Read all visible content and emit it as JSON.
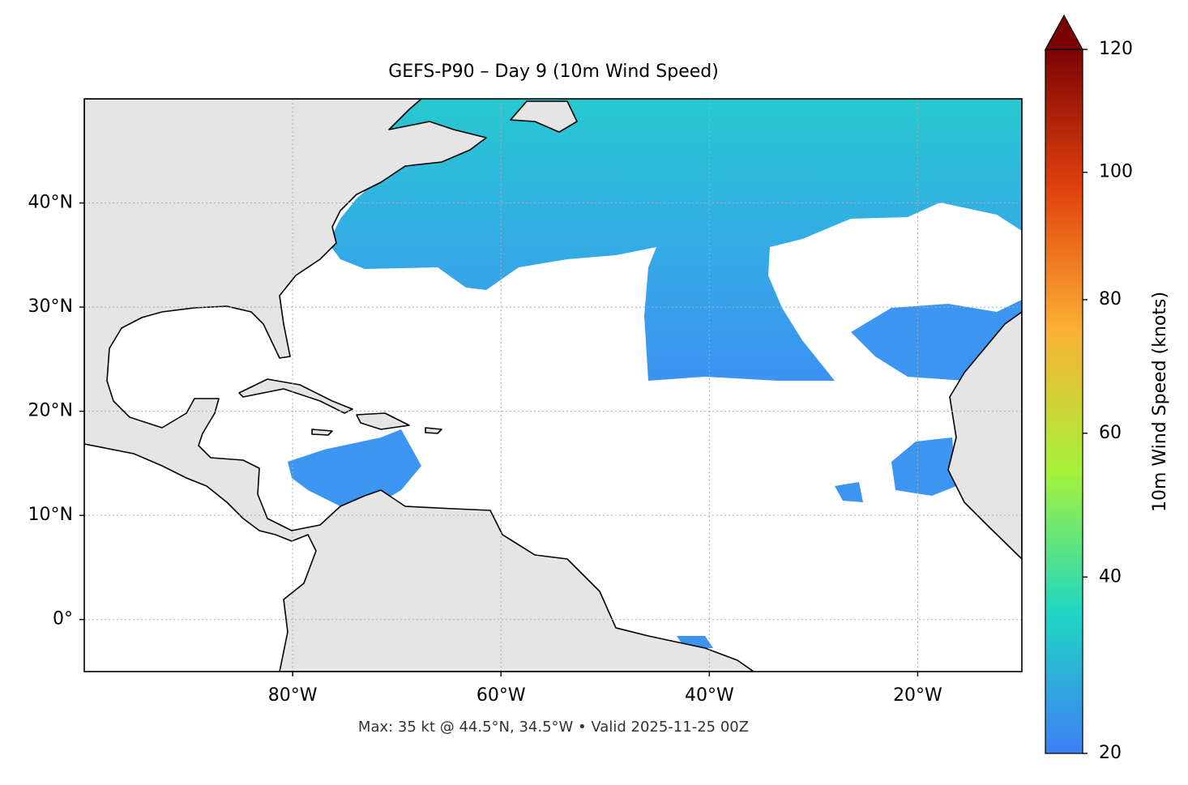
{
  "chart_data": {
    "type": "map",
    "title": "GEFS-P90 – Day 9 (10m Wind Speed)",
    "subtitle": "Max: 35 kt @ 44.5°N, 34.5°W • Valid 2025-11-25 00Z",
    "xlim": [
      -100,
      -10
    ],
    "ylim": [
      -5,
      50
    ],
    "xticks": [
      {
        "value": -80,
        "label": "80°W"
      },
      {
        "value": -60,
        "label": "60°W"
      },
      {
        "value": -40,
        "label": "40°W"
      },
      {
        "value": -20,
        "label": "20°W"
      }
    ],
    "yticks": [
      {
        "value": 0,
        "label": "0°"
      },
      {
        "value": 10,
        "label": "10°N"
      },
      {
        "value": 20,
        "label": "20°N"
      },
      {
        "value": 30,
        "label": "30°N"
      },
      {
        "value": 40,
        "label": "40°N"
      }
    ],
    "grid": true,
    "colorbar": {
      "label": "10m Wind Speed (knots)",
      "lim": [
        20,
        120
      ],
      "ticks": [
        20,
        40,
        60,
        80,
        100,
        120
      ],
      "gamma": 0.86,
      "extend": "max",
      "colors": [
        "#3e7ff5",
        "#1fd6c3",
        "#a5f23a",
        "#fbb135",
        "#e2420d",
        "#7a0403"
      ]
    }
  }
}
